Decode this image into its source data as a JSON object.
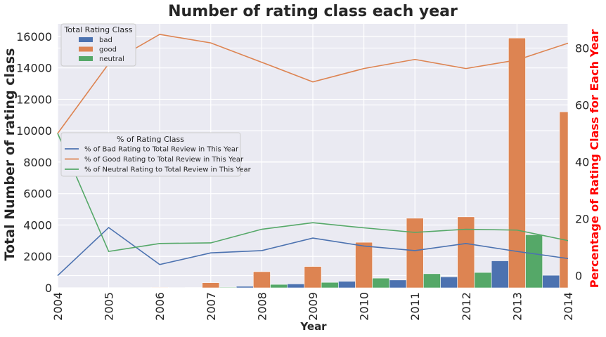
{
  "chart_data": {
    "type": "bar",
    "title": "Number of rating class  each year",
    "xlabel": "Year",
    "ylabel": "Total Number of rating class",
    "y2label": "Percentage of Rating Class for Each Year",
    "y2label_color": "#ff0000",
    "categories": [
      "2004",
      "2005",
      "2006",
      "2007",
      "2008",
      "2009",
      "2010",
      "2011",
      "2012",
      "2013",
      "2014"
    ],
    "ylim": [
      0,
      16800
    ],
    "y2lim": [
      -4.3,
      88.5
    ],
    "yticks": [
      0,
      2000,
      4000,
      6000,
      8000,
      10000,
      12000,
      14000,
      16000
    ],
    "y2ticks": [
      0,
      20,
      40,
      60,
      80
    ],
    "grid": true,
    "background": "#eaeaf2",
    "bar_legend": {
      "title": "Total Rating Class",
      "placement": "upper-left",
      "series": [
        {
          "name": "bad",
          "color": "#4c72b0",
          "values": [
            0,
            0,
            10,
            20,
            100,
            250,
            420,
            500,
            700,
            1720,
            800
          ]
        },
        {
          "name": "good",
          "color": "#dd8452",
          "values": [
            0,
            0,
            30,
            330,
            1030,
            1360,
            2900,
            4430,
            4520,
            15900,
            11200
          ]
        },
        {
          "name": "neutral",
          "color": "#55a868",
          "values": [
            0,
            0,
            10,
            40,
            220,
            350,
            620,
            900,
            980,
            3380,
            700
          ]
        }
      ]
    },
    "line_legend": {
      "title": "% of Rating Class",
      "placement": "center-left",
      "series": [
        {
          "name": "% of Bad Rating to Total Review in This Year",
          "color": "#4c72b0",
          "values": [
            0,
            16.9,
            3.9,
            8.0,
            8.8,
            13.2,
            10.4,
            8.8,
            11.3,
            8.5,
            6.0
          ]
        },
        {
          "name": "% of Good Rating to Total Review in This Year",
          "color": "#dd8452",
          "values": [
            50,
            74.5,
            84.8,
            81.8,
            75.0,
            68.1,
            72.8,
            76.0,
            72.8,
            75.8,
            81.7
          ]
        },
        {
          "name": "% of Neutral Rating to Total Review in This Year",
          "color": "#55a868",
          "values": [
            50,
            8.5,
            11.3,
            11.5,
            16.3,
            18.6,
            16.8,
            15.2,
            16.3,
            16.0,
            12.3
          ]
        }
      ]
    }
  }
}
